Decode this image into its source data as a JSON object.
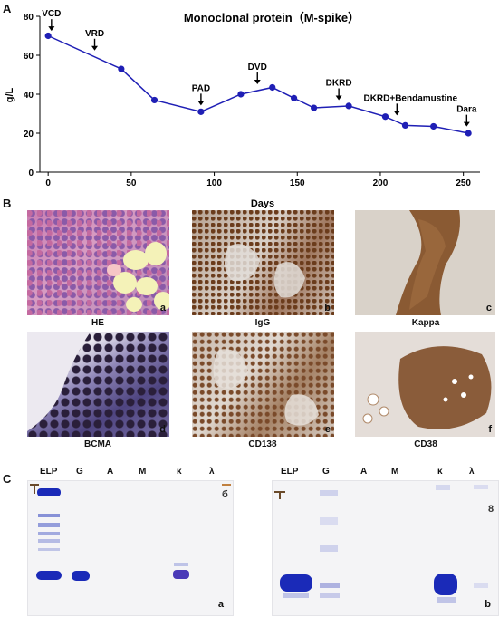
{
  "panels": {
    "a": "A",
    "b": "B",
    "c": "C"
  },
  "chart_data": {
    "type": "line",
    "title": "Monoclonal protein（M-spike）",
    "xlabel": "Days",
    "ylabel": "g/L",
    "xlim": [
      -5,
      260
    ],
    "ylim": [
      0,
      80
    ],
    "xticks": [
      "0",
      "50",
      "100",
      "150",
      "200",
      "250"
    ],
    "yticks": [
      "0",
      "20",
      "40",
      "60",
      "80"
    ],
    "x": [
      0,
      44,
      64,
      92,
      116,
      135,
      148,
      160,
      181,
      203,
      215,
      232,
      253
    ],
    "y": [
      70,
      53,
      37,
      31,
      40,
      43.5,
      38,
      33,
      34,
      28.5,
      24,
      23.5,
      20
    ],
    "series_color": "#1f1fb5",
    "annotations": [
      {
        "label": "VCD",
        "x": 2
      },
      {
        "label": "VRD",
        "x": 28
      },
      {
        "label": "PAD",
        "x": 92
      },
      {
        "label": "DVD",
        "x": 126
      },
      {
        "label": "DKRD",
        "x": 175
      },
      {
        "label": "DKRD+Bendamustine",
        "x": 210
      },
      {
        "label": "Dara",
        "x": 252
      }
    ]
  },
  "histology": [
    {
      "caption": "HE",
      "letter": "a"
    },
    {
      "caption": "IgG",
      "letter": "b"
    },
    {
      "caption": "Kappa",
      "letter": "c"
    },
    {
      "caption": "BCMA",
      "letter": "d"
    },
    {
      "caption": "CD138",
      "letter": "e"
    },
    {
      "caption": "CD38",
      "letter": "f"
    }
  ],
  "gels": [
    {
      "letter": "a",
      "lanes": [
        "ELP",
        "G",
        "A",
        "M",
        "κ",
        "λ"
      ]
    },
    {
      "letter": "b",
      "lanes": [
        "ELP",
        "G",
        "A",
        "M",
        "κ",
        "λ"
      ]
    }
  ]
}
